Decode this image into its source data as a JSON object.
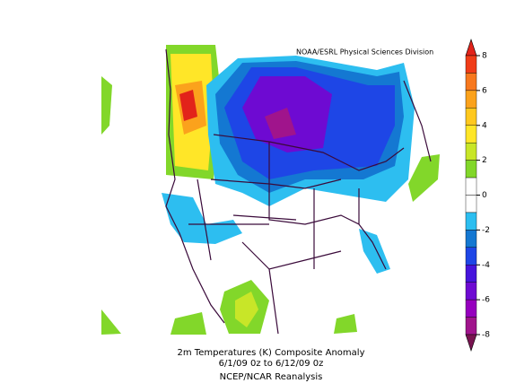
{
  "credit": "NOAA/ESRL Physical Sciences Division",
  "caption": [
    "2m Temperatures (K)   Composite Anomaly",
    "6/1/09 0z  to 6/12/09 0z",
    "NCEP/NCAR Reanalysis"
  ],
  "colorbar": {
    "ticks": [
      8,
      6,
      4,
      2,
      0,
      -2,
      -4,
      -6,
      -8
    ],
    "colors": [
      "#e2231a",
      "#f03c18",
      "#f7781e",
      "#fba21c",
      "#ffc81e",
      "#ffe628",
      "#c8e628",
      "#82d72a",
      "#ffffff",
      "#ffffff",
      "#2dbef0",
      "#1478d2",
      "#1e46e6",
      "#4614dc",
      "#6e0ad2",
      "#9600be",
      "#a0148c",
      "#781450"
    ]
  }
}
